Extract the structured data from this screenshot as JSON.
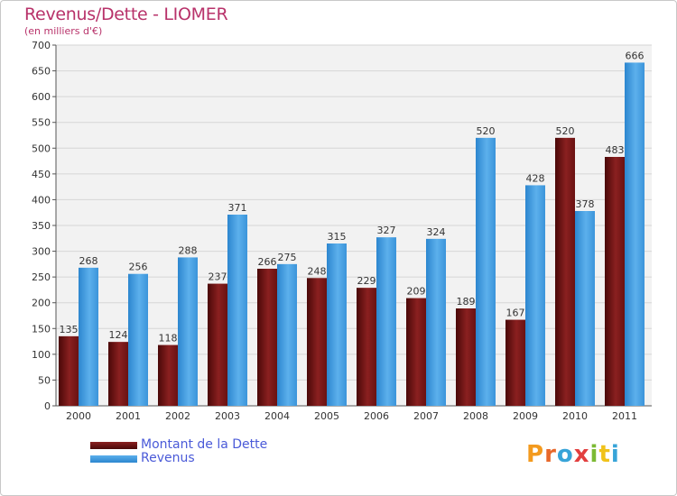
{
  "title": "Revenus/Dette - LIOMER",
  "subtitle": "(en milliers d'€)",
  "colors": {
    "dette": "#6e1010",
    "revenus": "#3d97dd",
    "title": "#b8326a",
    "legend_text": "#4a5ad8"
  },
  "logo": {
    "letters": [
      "P",
      "r",
      "o",
      "x",
      "i",
      "t",
      "i"
    ],
    "colors": [
      "#f39a1e",
      "#e8682a",
      "#38a4d8",
      "#e23f3f",
      "#7cba34",
      "#f0c21a",
      "#38a4d8"
    ]
  },
  "chart_data": {
    "type": "bar",
    "title": "Revenus/Dette - LIOMER",
    "subtitle": "(en milliers d'€)",
    "categories": [
      "2000",
      "2001",
      "2002",
      "2003",
      "2004",
      "2005",
      "2006",
      "2007",
      "2008",
      "2009",
      "2010",
      "2011"
    ],
    "series": [
      {
        "name": "Montant de la Dette",
        "values": [
          135,
          124,
          118,
          237,
          266,
          248,
          229,
          209,
          189,
          167,
          520,
          483
        ]
      },
      {
        "name": "Revenus",
        "values": [
          268,
          256,
          288,
          371,
          275,
          315,
          327,
          324,
          520,
          428,
          378,
          666
        ]
      }
    ],
    "ylim": [
      0,
      700
    ],
    "yticks": [
      0,
      50,
      100,
      150,
      200,
      250,
      300,
      350,
      400,
      450,
      500,
      550,
      600,
      650,
      700
    ],
    "grid": true,
    "legend": "bottom-left"
  }
}
